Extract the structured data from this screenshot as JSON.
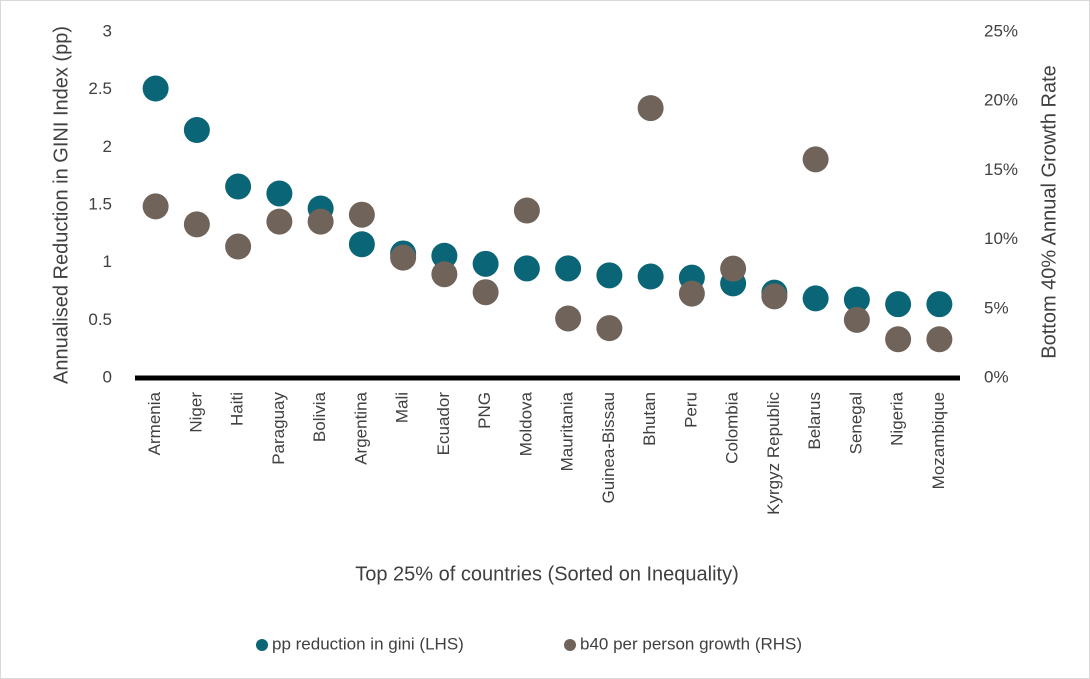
{
  "chart_data": {
    "type": "scatter",
    "x_label": "Top 25% of countries (Sorted on Inequality)",
    "y_label": "Annualised Reduction in GINI Index (pp)",
    "y2_label": "Bottom 40% Annual Growth Rate",
    "categories": [
      "Armenia",
      "Niger",
      "Haiti",
      "Paraguay",
      "Bolivia",
      "Argentina",
      "Mali",
      "Ecuador",
      "PNG",
      "Moldova",
      "Mauritania",
      "Guinea-Bissau",
      "Bhutan",
      "Peru",
      "Colombia",
      "Kyrgyz Republic",
      "Belarus",
      "Senegal",
      "Nigeria",
      "Mozambique"
    ],
    "series": [
      {
        "name": "pp reduction in gini (LHS)",
        "color": "#0a6577",
        "values": [
          2.51,
          2.15,
          1.66,
          1.6,
          1.47,
          1.16,
          1.08,
          1.06,
          0.99,
          0.95,
          0.95,
          0.89,
          0.88,
          0.87,
          0.82,
          0.74,
          0.69,
          0.68,
          0.64,
          0.64
        ]
      },
      {
        "name": "b40 per person growth (RHS)",
        "color": "#6f635a",
        "axis": "y2",
        "values": [
          12.4,
          11.1,
          9.5,
          11.3,
          11.3,
          11.8,
          8.7,
          7.5,
          6.2,
          12.1,
          4.3,
          3.6,
          19.5,
          6.1,
          7.9,
          5.9,
          15.8,
          4.2,
          2.8,
          2.8
        ]
      }
    ],
    "ylim": [
      0,
      3
    ],
    "yticks": [
      0,
      0.5,
      1,
      1.5,
      2,
      2.5,
      3
    ],
    "y2lim": [
      0,
      25
    ],
    "y2ticks": [
      {
        "value": 0,
        "label": "0%"
      },
      {
        "value": 5,
        "label": "5%"
      },
      {
        "value": 10,
        "label": "10%"
      },
      {
        "value": 15,
        "label": "15%"
      },
      {
        "value": 20,
        "label": "20%"
      },
      {
        "value": 25,
        "label": "25%"
      }
    ],
    "legend": "bottom"
  }
}
